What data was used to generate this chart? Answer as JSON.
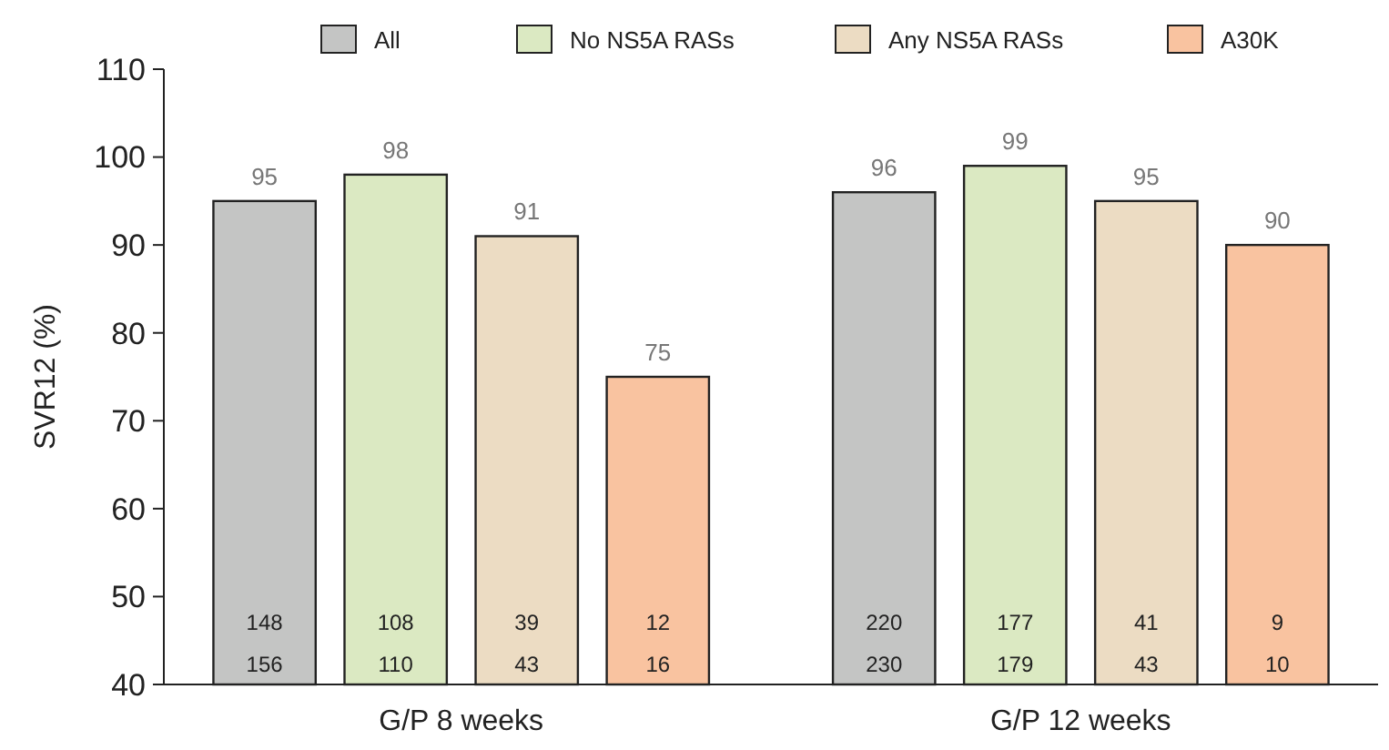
{
  "chart_data": {
    "type": "bar",
    "ylabel": "SVR12 (%)",
    "categories": [
      "G/P 8 weeks",
      "G/P 12 weeks"
    ],
    "series": [
      {
        "name": "All",
        "color": "#c4c5c4",
        "values": [
          95,
          96
        ]
      },
      {
        "name": "No NS5A RASs",
        "color": "#dbe9c2",
        "values": [
          98,
          99
        ]
      },
      {
        "name": "Any NS5A RASs",
        "color": "#ecdcc3",
        "values": [
          91,
          95
        ]
      },
      {
        "name": "A30K",
        "color": "#f9c3a0",
        "values": [
          75,
          90
        ]
      }
    ],
    "ylim": [
      40,
      110
    ],
    "yticks": [
      40,
      50,
      60,
      70,
      80,
      90,
      100,
      110
    ],
    "grid": false,
    "legend": "top",
    "data_labels": true,
    "annotations": [
      "148\n156",
      "108\n110",
      "39\n43",
      "12\n16",
      "220\n230",
      "177\n179",
      "41\n43",
      "9\n10"
    ]
  }
}
